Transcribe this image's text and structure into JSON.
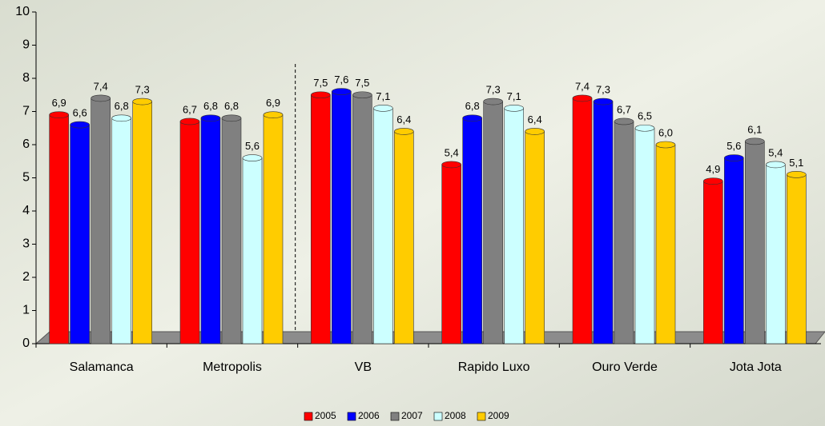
{
  "chart_data": {
    "type": "bar",
    "categories": [
      "Salamanca",
      "Metropolis",
      "VB",
      "Rapido Luxo",
      "Ouro Verde",
      "Jota Jota"
    ],
    "series": [
      {
        "name": "2005",
        "color": "#ff0000",
        "values": [
          6.9,
          6.7,
          7.5,
          5.4,
          7.4,
          4.9
        ],
        "value_labels": [
          "6,9",
          "6,7",
          "7,5",
          "5,4",
          "7,4",
          "4,9"
        ]
      },
      {
        "name": "2006",
        "color": "#0000ff",
        "values": [
          6.6,
          6.8,
          7.6,
          6.8,
          7.3,
          5.6
        ],
        "value_labels": [
          "6,6",
          "6,8",
          "7,6",
          "6,8",
          "7,3",
          "5,6"
        ]
      },
      {
        "name": "2007",
        "color": "#808080",
        "values": [
          7.4,
          6.8,
          7.5,
          7.3,
          6.7,
          6.1
        ],
        "value_labels": [
          "7,4",
          "6,8",
          "7,5",
          "7,3",
          "6,7",
          "6,1"
        ]
      },
      {
        "name": "2008",
        "color": "#ccffff",
        "values": [
          6.8,
          5.6,
          7.1,
          7.1,
          6.5,
          5.4
        ],
        "value_labels": [
          "6,8",
          "5,6",
          "7,1",
          "7,1",
          "6,5",
          "5,4"
        ]
      },
      {
        "name": "2009",
        "color": "#ffcc00",
        "values": [
          7.3,
          6.9,
          6.4,
          6.4,
          6.0,
          5.1
        ],
        "value_labels": [
          "7,3",
          "6,9",
          "6,4",
          "6,4",
          "6,0",
          "5,1"
        ]
      }
    ],
    "ylim": [
      0,
      10
    ],
    "yticks": [
      0,
      1,
      2,
      3,
      4,
      5,
      6,
      7,
      8,
      9,
      10
    ],
    "legend": "bottom"
  }
}
